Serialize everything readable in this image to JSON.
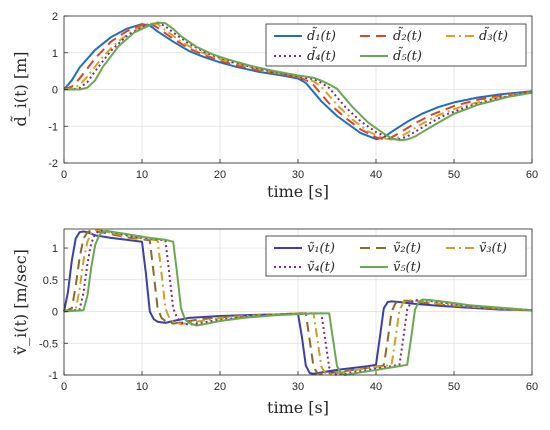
{
  "chart_data": [
    {
      "type": "line",
      "xlabel": "time [s]",
      "ylabel": "d̃_i(t) [m]",
      "xlim": [
        0,
        60
      ],
      "ylim": [
        -2,
        2
      ],
      "xticks": [
        0,
        10,
        20,
        30,
        40,
        50,
        60
      ],
      "yticks": [
        -2,
        -1,
        0,
        1,
        2
      ],
      "xtick_labels": [
        "0",
        "10",
        "20",
        "30",
        "40",
        "50",
        "60"
      ],
      "ytick_labels": [
        "-2",
        "-1",
        "0",
        "1",
        "2"
      ],
      "grid": true,
      "legend_position": "top-right",
      "series": [
        {
          "name": "d̃₁(t)",
          "color": "#1f6fbf",
          "dash": "solid",
          "x": [
            0,
            1,
            2,
            4,
            6,
            8,
            10,
            11,
            12,
            14,
            16,
            18,
            20,
            22,
            25,
            28,
            30,
            31,
            33,
            35,
            38,
            40,
            41,
            42,
            44,
            46,
            48,
            50,
            53,
            56,
            60
          ],
          "y": [
            0,
            0.25,
            0.6,
            1.08,
            1.42,
            1.65,
            1.78,
            1.74,
            1.58,
            1.3,
            1.05,
            0.88,
            0.74,
            0.62,
            0.48,
            0.38,
            0.3,
            0.18,
            -0.32,
            -0.72,
            -1.18,
            -1.35,
            -1.3,
            -1.15,
            -0.88,
            -0.65,
            -0.48,
            -0.35,
            -0.22,
            -0.13,
            -0.05
          ]
        },
        {
          "name": "d̃₂(t)",
          "color": "#d9452b",
          "dash": "10,6",
          "x": [
            0,
            1,
            2,
            4,
            6,
            8,
            10,
            11,
            12,
            14,
            16,
            18,
            20,
            22,
            25,
            28,
            30,
            31,
            32,
            34,
            36,
            38,
            40,
            41,
            42,
            43,
            45,
            47,
            50,
            53,
            56,
            60
          ],
          "y": [
            0,
            0.08,
            0.3,
            0.85,
            1.3,
            1.58,
            1.76,
            1.8,
            1.68,
            1.38,
            1.12,
            0.94,
            0.79,
            0.66,
            0.52,
            0.41,
            0.32,
            0.26,
            0.12,
            -0.38,
            -0.76,
            -1.08,
            -1.3,
            -1.35,
            -1.3,
            -1.18,
            -0.92,
            -0.7,
            -0.45,
            -0.28,
            -0.17,
            -0.06
          ]
        },
        {
          "name": "d̃₃(t)",
          "color": "#e0a020",
          "dash": "9,4,2,4",
          "x": [
            0,
            1,
            2,
            3,
            5,
            7,
            9,
            11,
            12,
            13,
            15,
            17,
            19,
            21,
            24,
            27,
            30,
            32,
            33,
            35,
            37,
            39,
            41,
            42,
            43,
            44,
            46,
            48,
            51,
            55,
            60
          ],
          "y": [
            0,
            0.02,
            0.12,
            0.35,
            0.9,
            1.32,
            1.62,
            1.8,
            1.78,
            1.62,
            1.3,
            1.06,
            0.9,
            0.76,
            0.6,
            0.46,
            0.35,
            0.22,
            0.08,
            -0.42,
            -0.82,
            -1.14,
            -1.33,
            -1.36,
            -1.3,
            -1.18,
            -0.92,
            -0.7,
            -0.46,
            -0.24,
            -0.07
          ]
        },
        {
          "name": "d̃₄(t)",
          "color": "#7a2a8a",
          "dash": "2,3",
          "x": [
            0,
            1,
            2,
            3,
            4,
            6,
            8,
            10,
            12,
            13,
            14,
            16,
            18,
            20,
            22,
            25,
            28,
            30,
            32,
            33,
            34,
            36,
            38,
            40,
            42,
            43,
            44,
            45,
            47,
            49,
            52,
            56,
            60
          ],
          "y": [
            0,
            0,
            0.04,
            0.2,
            0.5,
            1.05,
            1.45,
            1.7,
            1.82,
            1.72,
            1.55,
            1.25,
            1.02,
            0.86,
            0.72,
            0.56,
            0.43,
            0.36,
            0.28,
            0.18,
            0.04,
            -0.46,
            -0.86,
            -1.16,
            -1.35,
            -1.35,
            -1.28,
            -1.15,
            -0.9,
            -0.68,
            -0.45,
            -0.22,
            -0.08
          ]
        },
        {
          "name": "d̃₅(t)",
          "color": "#6aa84f",
          "dash": "solid",
          "x": [
            0,
            1,
            2,
            3,
            4,
            5,
            7,
            9,
            11,
            12,
            13,
            14,
            15,
            17,
            19,
            21,
            24,
            27,
            30,
            32,
            33,
            34,
            35,
            37,
            39,
            41,
            42,
            43,
            44,
            45,
            46,
            48,
            50,
            53,
            57,
            60
          ],
          "y": [
            0,
            0,
            0,
            0.05,
            0.25,
            0.62,
            1.18,
            1.55,
            1.75,
            1.82,
            1.8,
            1.65,
            1.45,
            1.16,
            0.96,
            0.82,
            0.64,
            0.5,
            0.38,
            0.32,
            0.24,
            0.14,
            0.02,
            -0.48,
            -0.9,
            -1.2,
            -1.33,
            -1.38,
            -1.36,
            -1.28,
            -1.15,
            -0.9,
            -0.66,
            -0.42,
            -0.2,
            -0.09
          ]
        }
      ]
    },
    {
      "type": "line",
      "xlabel": "time [s]",
      "ylabel": "ṽ_i(t) [m/sec]",
      "xlim": [
        0,
        60
      ],
      "ylim": [
        -1,
        1.3
      ],
      "xticks": [
        0,
        10,
        20,
        30,
        40,
        50,
        60
      ],
      "yticks": [
        -1,
        -0.5,
        0,
        0.5,
        1
      ],
      "xtick_labels": [
        "0",
        "10",
        "20",
        "30",
        "40",
        "50",
        "60"
      ],
      "ytick_labels": [
        "-1",
        "-0.5",
        "0",
        "0.5",
        "1"
      ],
      "grid": true,
      "legend_position": "top-right",
      "series": [
        {
          "name": "ṽ₁(t)",
          "color": "#3b3fa6",
          "dash": "solid",
          "x": [
            0,
            0.5,
            1,
            1.5,
            2,
            2.5,
            3,
            4,
            6,
            8,
            10,
            10.5,
            11,
            11.5,
            12,
            13,
            14,
            16,
            20,
            25,
            29,
            30,
            30.5,
            31,
            31.5,
            32,
            33,
            35,
            37,
            39,
            40,
            40.5,
            41,
            41.5,
            42,
            43,
            45,
            48,
            52,
            56,
            60
          ],
          "y": [
            0,
            0.3,
            0.8,
            1.15,
            1.25,
            1.26,
            1.25,
            1.2,
            1.16,
            1.13,
            1.1,
            0.6,
            0.0,
            -0.12,
            -0.16,
            -0.18,
            -0.15,
            -0.1,
            -0.07,
            -0.05,
            -0.04,
            -0.03,
            -0.4,
            -0.85,
            -0.97,
            -0.98,
            -0.96,
            -0.92,
            -0.89,
            -0.86,
            -0.84,
            -0.4,
            0.05,
            0.15,
            0.16,
            0.15,
            0.12,
            0.09,
            0.06,
            0.03,
            0.02
          ]
        },
        {
          "name": "ṽ₂(t)",
          "color": "#8a6a2a",
          "dash": "10,6",
          "x": [
            0,
            1,
            1.5,
            2,
            2.5,
            3,
            3.5,
            4,
            6,
            8,
            10,
            11,
            11.5,
            12,
            12.5,
            13,
            14,
            15,
            17,
            20,
            25,
            30,
            31,
            31.5,
            32,
            32.5,
            33,
            34,
            36,
            38,
            40,
            41,
            41.5,
            42,
            42.5,
            43,
            44,
            46,
            49,
            53,
            57,
            60
          ],
          "y": [
            0,
            0.05,
            0.4,
            0.85,
            1.15,
            1.25,
            1.28,
            1.27,
            1.22,
            1.17,
            1.14,
            1.12,
            0.6,
            0.05,
            -0.1,
            -0.15,
            -0.19,
            -0.17,
            -0.13,
            -0.09,
            -0.06,
            -0.03,
            -0.03,
            -0.45,
            -0.88,
            -0.97,
            -0.98,
            -0.97,
            -0.94,
            -0.9,
            -0.87,
            -0.85,
            -0.45,
            0.0,
            0.13,
            0.17,
            0.17,
            0.14,
            0.1,
            0.06,
            0.03,
            0.02
          ]
        },
        {
          "name": "ṽ₃(t)",
          "color": "#c9a227",
          "dash": "9,4,2,4",
          "x": [
            0,
            1.5,
            2,
            2.5,
            3,
            3.5,
            4,
            4.5,
            6,
            8,
            10,
            12,
            12.5,
            13,
            13.5,
            14,
            15,
            16,
            18,
            21,
            25,
            30,
            32,
            32.5,
            33,
            33.5,
            34,
            35,
            37,
            39,
            41,
            42,
            42.5,
            43,
            43.5,
            44,
            45,
            47,
            50,
            54,
            58,
            60
          ],
          "y": [
            0,
            0.03,
            0.35,
            0.8,
            1.1,
            1.24,
            1.28,
            1.28,
            1.24,
            1.19,
            1.15,
            1.12,
            0.6,
            0.05,
            -0.1,
            -0.16,
            -0.2,
            -0.18,
            -0.14,
            -0.09,
            -0.06,
            -0.03,
            -0.03,
            -0.45,
            -0.87,
            -0.97,
            -0.99,
            -0.97,
            -0.93,
            -0.89,
            -0.86,
            -0.84,
            -0.42,
            0.02,
            0.14,
            0.18,
            0.17,
            0.14,
            0.1,
            0.06,
            0.03,
            0.02
          ]
        },
        {
          "name": "ṽ₄(t)",
          "color": "#7a2a8a",
          "dash": "2,3",
          "x": [
            0,
            2,
            2.5,
            3,
            3.5,
            4,
            4.5,
            5,
            7,
            9,
            11,
            13,
            13.5,
            14,
            14.5,
            15,
            16,
            17,
            19,
            22,
            26,
            31,
            33,
            33.5,
            34,
            34.5,
            35,
            36,
            38,
            40,
            42,
            43,
            43.5,
            44,
            44.5,
            45,
            46,
            48,
            51,
            55,
            58,
            60
          ],
          "y": [
            0,
            0.03,
            0.3,
            0.75,
            1.08,
            1.22,
            1.27,
            1.27,
            1.23,
            1.18,
            1.15,
            1.12,
            0.6,
            0.05,
            -0.1,
            -0.17,
            -0.21,
            -0.19,
            -0.15,
            -0.1,
            -0.06,
            -0.03,
            -0.03,
            -0.45,
            -0.88,
            -0.98,
            -1.0,
            -0.98,
            -0.94,
            -0.9,
            -0.86,
            -0.84,
            -0.42,
            0.03,
            0.15,
            0.18,
            0.18,
            0.15,
            0.1,
            0.06,
            0.04,
            0.02
          ]
        },
        {
          "name": "ṽ₅(t)",
          "color": "#6aa84f",
          "dash": "solid",
          "x": [
            0,
            2.5,
            3,
            3.5,
            4,
            4.5,
            5,
            5.5,
            7,
            9,
            11,
            13,
            14,
            14.5,
            15,
            15.5,
            16,
            17,
            18,
            20,
            23,
            27,
            32,
            34,
            34.5,
            35,
            35.5,
            36,
            37,
            39,
            41,
            43,
            44,
            44.5,
            45,
            45.5,
            46,
            47,
            49,
            52,
            56,
            60
          ],
          "y": [
            0,
            0.02,
            0.25,
            0.7,
            1.05,
            1.2,
            1.26,
            1.27,
            1.24,
            1.2,
            1.16,
            1.13,
            1.1,
            0.6,
            0.05,
            -0.12,
            -0.18,
            -0.22,
            -0.2,
            -0.15,
            -0.1,
            -0.06,
            -0.03,
            -0.03,
            -0.45,
            -0.86,
            -0.97,
            -1.0,
            -0.98,
            -0.94,
            -0.9,
            -0.86,
            -0.84,
            -0.42,
            0.03,
            0.15,
            0.19,
            0.18,
            0.15,
            0.1,
            0.06,
            0.02
          ]
        }
      ]
    }
  ]
}
